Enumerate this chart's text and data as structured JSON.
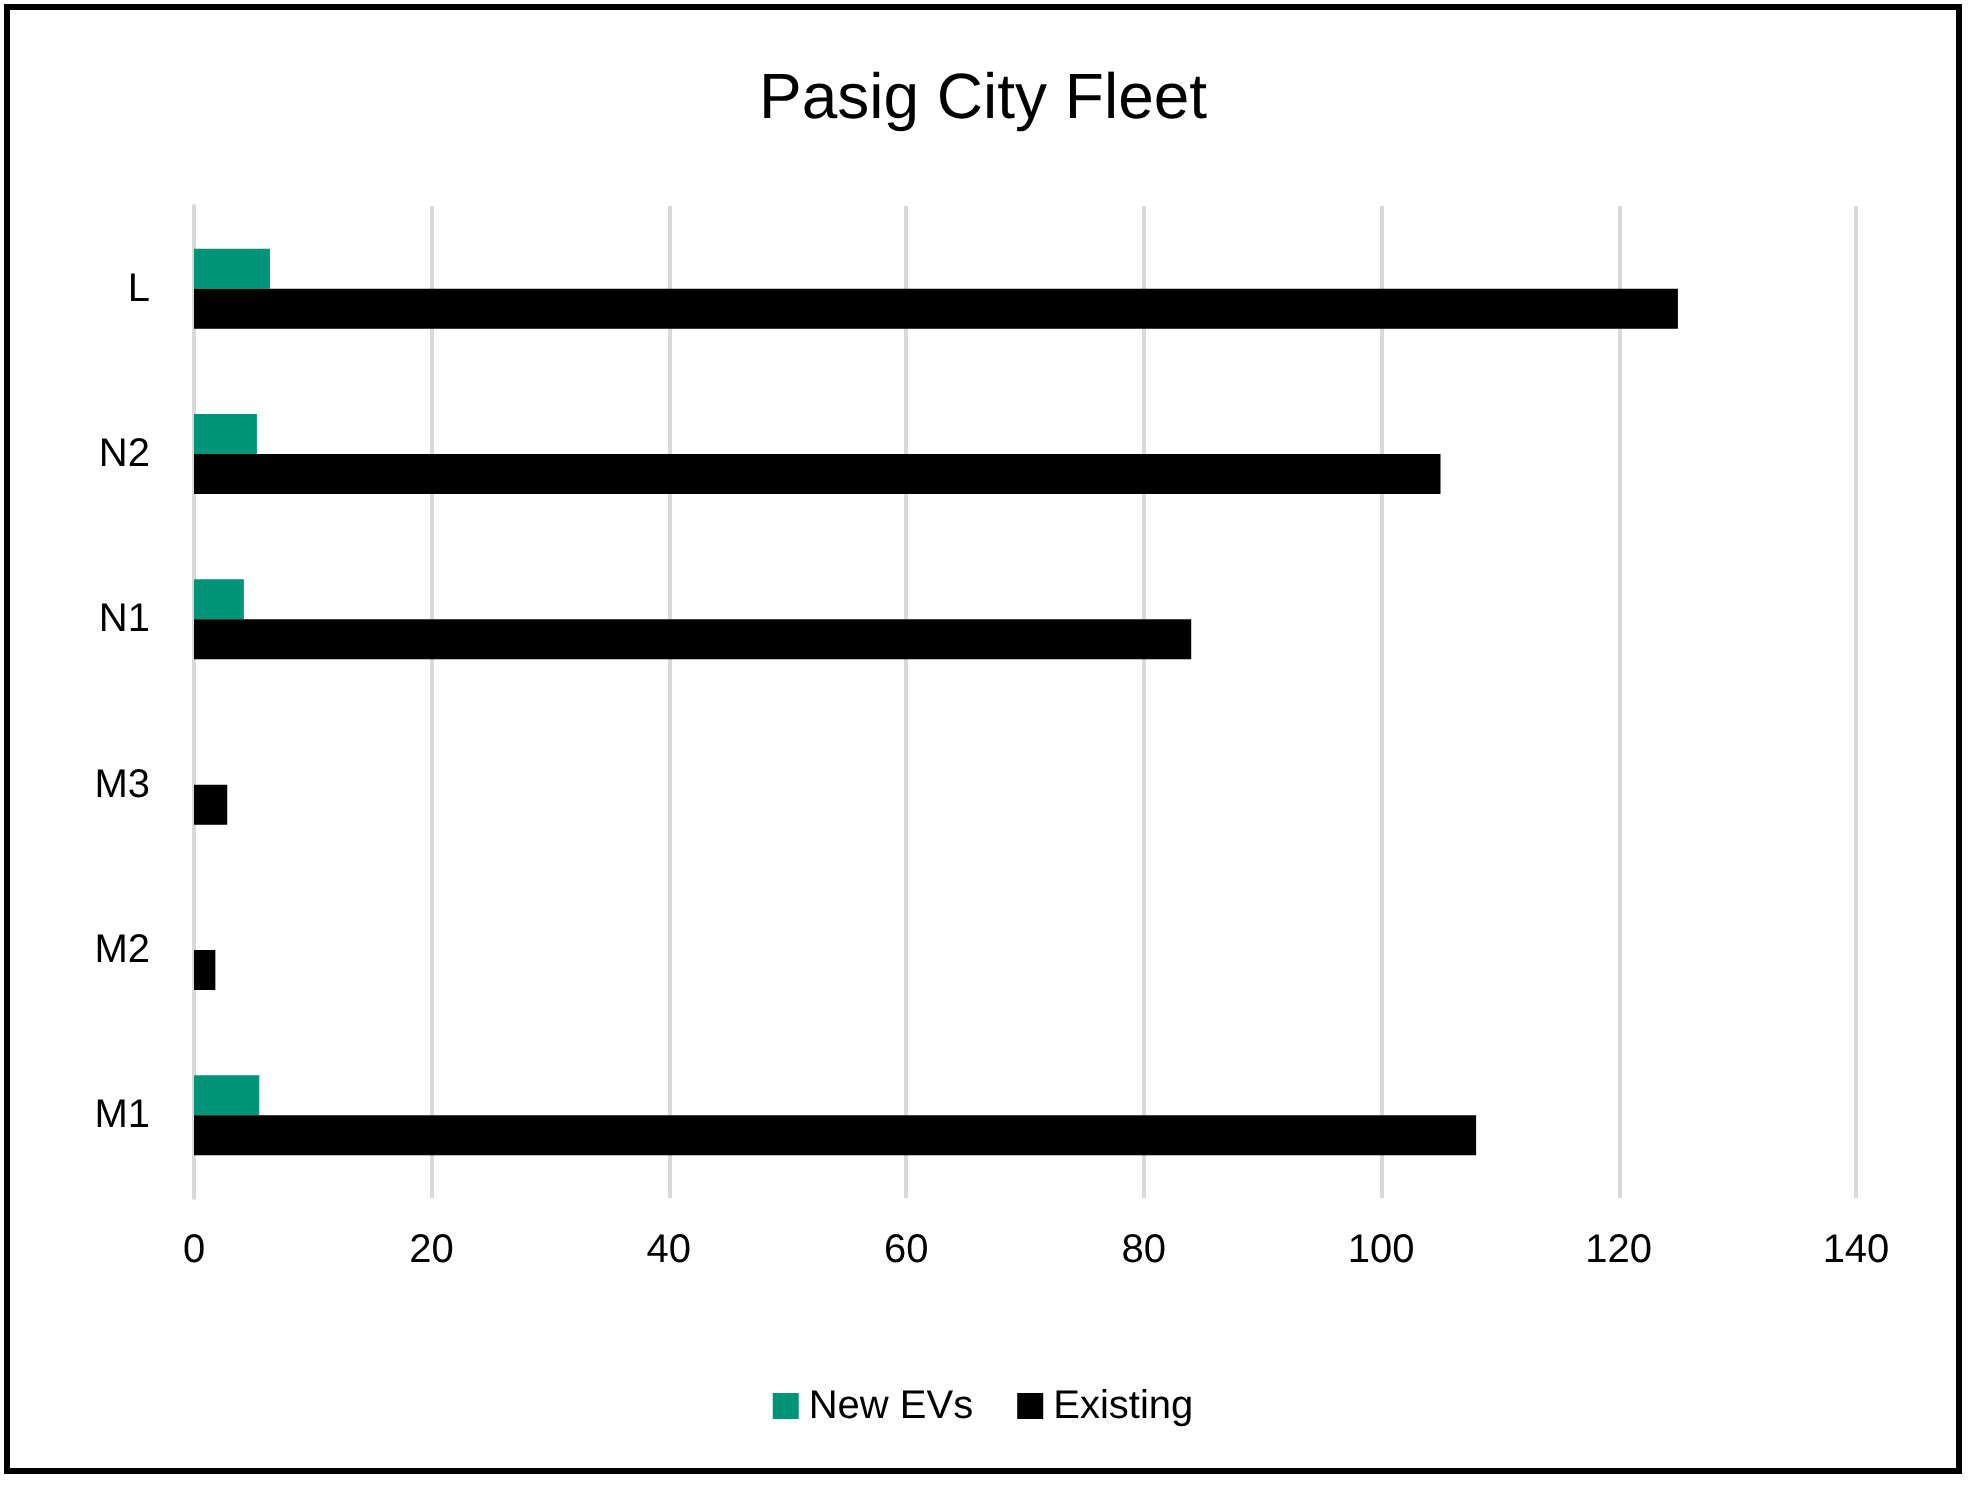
{
  "chart_data": {
    "type": "bar",
    "title": "Pasig City Fleet",
    "orientation": "horizontal",
    "categories": [
      "L",
      "N2",
      "N1",
      "M3",
      "M2",
      "M1"
    ],
    "series": [
      {
        "name": "New EVs",
        "color": "#009479",
        "values": [
          6.4,
          5.3,
          4.2,
          null,
          null,
          5.5
        ]
      },
      {
        "name": "Existing",
        "color": "#000000",
        "values": [
          125,
          105,
          84,
          2.8,
          1.8,
          108
        ]
      }
    ],
    "xlim": [
      0,
      140
    ],
    "xticks": [
      0,
      20,
      40,
      60,
      80,
      100,
      120,
      140
    ],
    "grid": "x",
    "legend": "bottom"
  }
}
